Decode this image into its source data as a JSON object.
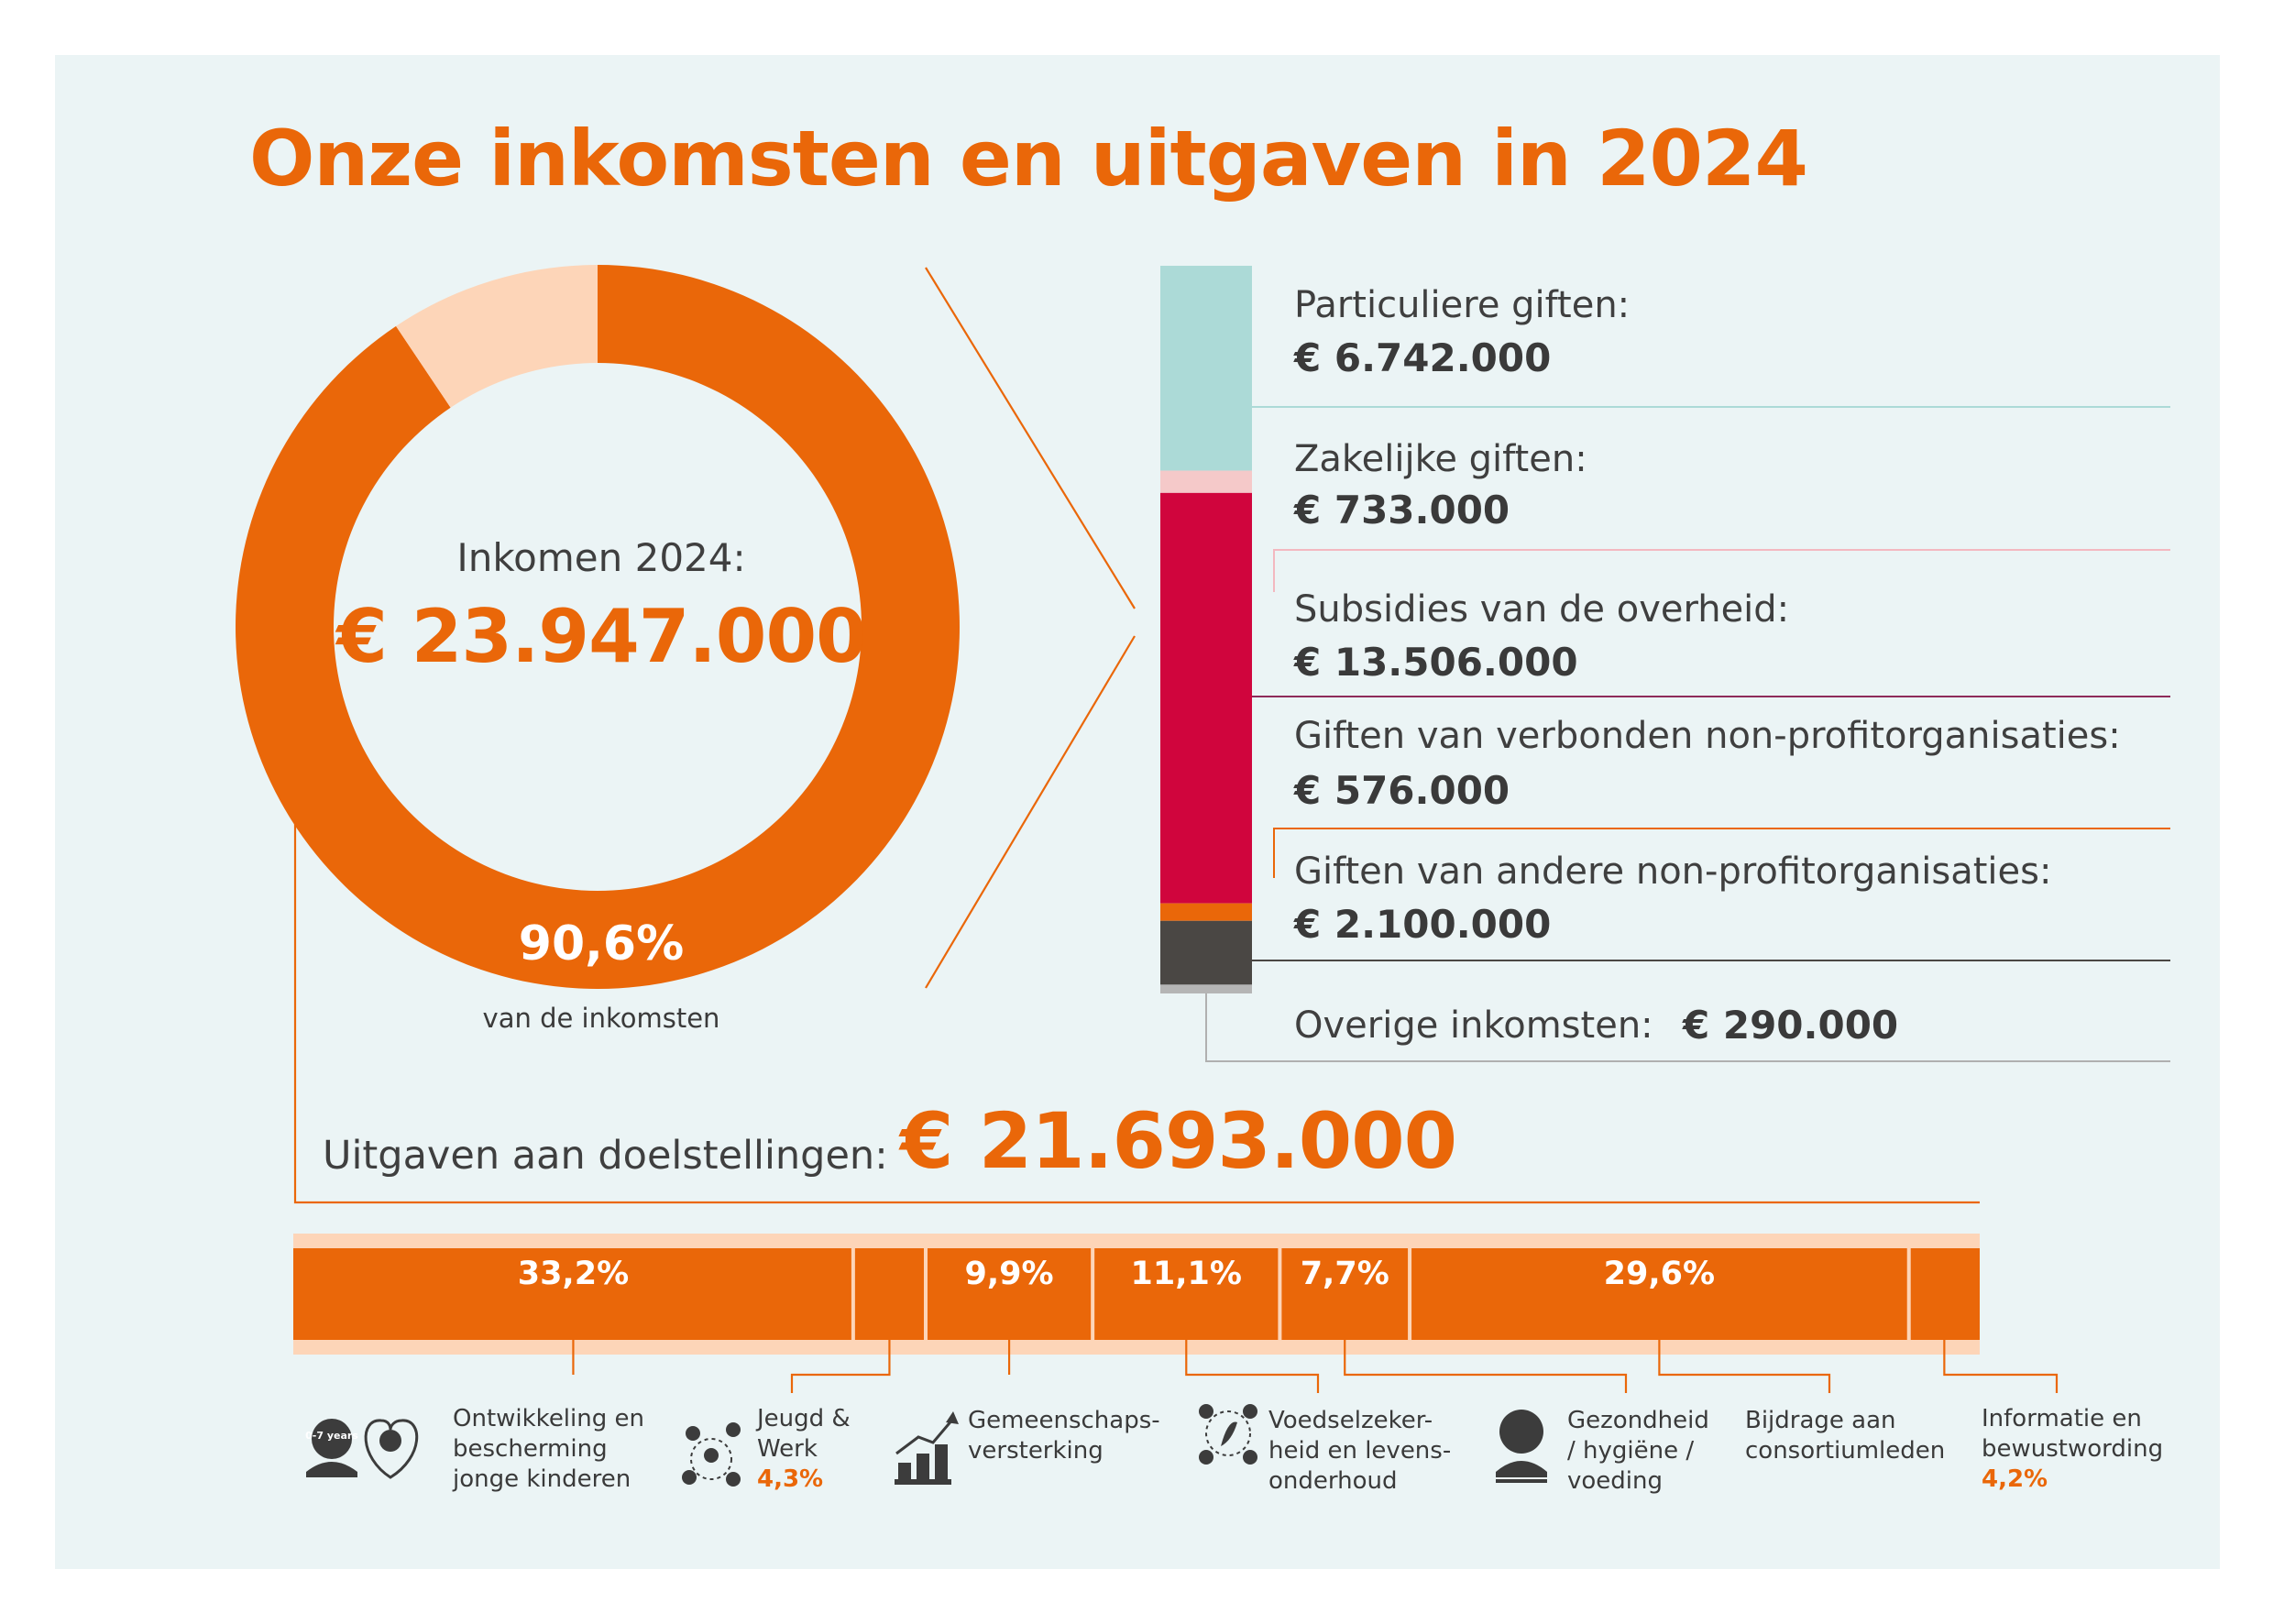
{
  "title": "Onze inkomsten en uitgaven in 2024",
  "income": {
    "label": "Inkomen 2024:",
    "total": "€ 23.947.000",
    "share_to_objectives": "90,6%",
    "share_to_objectives_caption": "van de inkomsten"
  },
  "expenses": {
    "label": "Uitgaven aan doelstellingen:",
    "total": "€ 21.693.000"
  },
  "chart_data": [
    {
      "type": "pie",
      "slices": [
        {
          "label": "Uitgaven aan doelstellingen",
          "value": 90.6
        },
        {
          "label": "",
          "value": 9.4
        }
      ],
      "title": "",
      "colors": [
        "#ea6709",
        "#fdd5b8"
      ]
    },
    {
      "type": "bar",
      "orientation": "stacked-vertical",
      "categories": [
        "Particuliere giften:",
        "Zakelijke giften:",
        "Subsidies van de overheid:",
        "Giften van verbonden non-profitorganisaties:",
        "Giften van andere non-profitorganisaties:",
        "Overige inkomsten:"
      ],
      "display_values": [
        "€ 6.742.000",
        "€ 733.000",
        "€ 13.506.000",
        "€ 576.000",
        "€ 2.100.000",
        "€ 290.000"
      ],
      "values": [
        6742000,
        733000,
        13506000,
        576000,
        2100000,
        290000
      ],
      "colors": [
        "#acdad7",
        "#f5c9c9",
        "#d0053d",
        "#ea6709",
        "#4a4744",
        "#b5b5b5"
      ]
    },
    {
      "type": "bar",
      "orientation": "stacked-horizontal",
      "categories": [
        "Ontwikkeling en bescherming jonge kinderen",
        "Jeugd & Werk",
        "Gemeenschaps-versterking",
        "Voedselzekerheid en levensonderhoud",
        "Gezondheid / hygiëne / voeding",
        "Bijdrage aan consortiumleden",
        "Informatie en bewustwording"
      ],
      "values": [
        33.2,
        4.3,
        9.9,
        11.1,
        7.7,
        29.6,
        4.2
      ],
      "labels": [
        "33,2%",
        "4,3%",
        "9,9%",
        "11,1%",
        "7,7%",
        "29,6%",
        "4,2%"
      ],
      "color": "#ea6709"
    }
  ],
  "income_lines": [
    {
      "name": "Particuliere giften:",
      "value": "€ 6.742.000"
    },
    {
      "name": "Zakelijke giften:",
      "value": "€ 733.000"
    },
    {
      "name": "Subsidies van de overheid:",
      "value": "€ 13.506.000"
    },
    {
      "name": "Giften van verbonden non-profitorganisaties:",
      "value": "€ 576.000"
    },
    {
      "name": "Giften van andere non-profitorganisaties:",
      "value": "€ 2.100.000"
    },
    {
      "name": "Overige inkomsten:",
      "value": "€ 290.000"
    }
  ],
  "categories": [
    {
      "line1": "Ontwikkeling en",
      "line2": "bescherming",
      "line3": "jonge kinderen",
      "pct": "",
      "icon": "child-protection-icon",
      "icon_badge": "0-7 years"
    },
    {
      "line1": "Jeugd &",
      "line2": "Werk",
      "line3": "",
      "pct": "4,3%",
      "icon": "youth-network-icon"
    },
    {
      "line1": "Gemeenschaps-",
      "line2": "versterking",
      "line3": "",
      "pct": "",
      "icon": "community-growth-icon"
    },
    {
      "line1": "Voedselzeker-",
      "line2": "heid en levens-",
      "line3": "onderhoud",
      "pct": "",
      "icon": "food-security-icon"
    },
    {
      "line1": "Gezondheid",
      "line2": "/ hygiëne /",
      "line3": "voeding",
      "pct": "",
      "icon": "health-person-icon"
    },
    {
      "line1": "Bijdrage aan",
      "line2": "consortiumleden",
      "line3": "",
      "pct": "",
      "icon": ""
    },
    {
      "line1": "Informatie en",
      "line2": "bewustwording",
      "line3": "",
      "pct": "4,2%",
      "icon": ""
    }
  ]
}
